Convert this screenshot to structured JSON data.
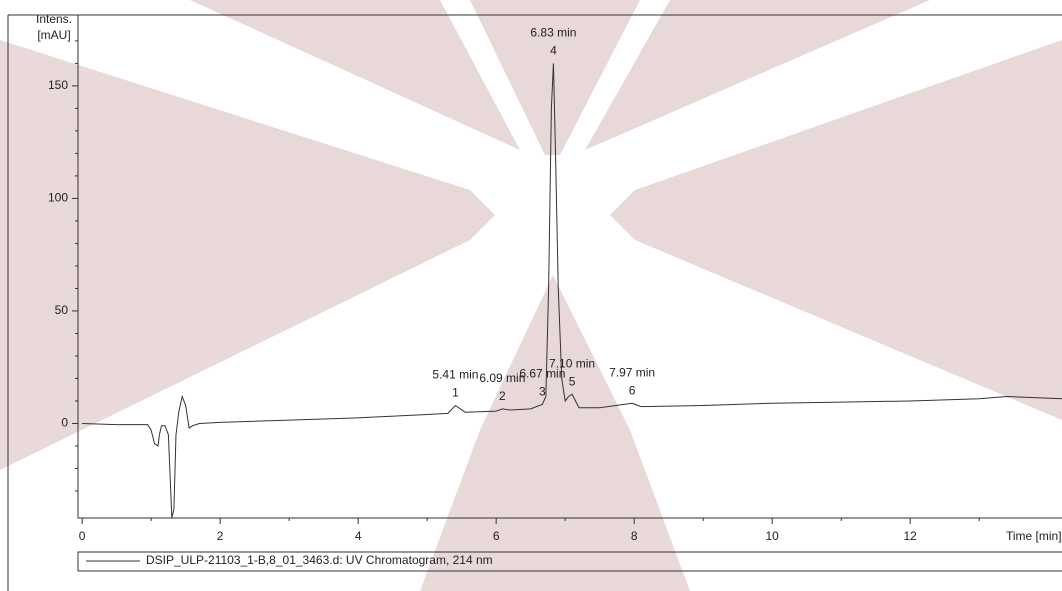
{
  "chart_data": {
    "type": "line",
    "y_label": [
      "Intens.",
      "[mAU]"
    ],
    "x_label": "Time [min]",
    "xlim": [
      -0.06,
      14.2
    ],
    "ylim": [
      -42,
      181.5
    ],
    "xticks": [
      0,
      2,
      4,
      6,
      8,
      10,
      12
    ],
    "yticks": [
      0,
      50,
      100,
      150
    ],
    "xminorticks": [
      1,
      3,
      5,
      7,
      9,
      11,
      13
    ],
    "yminorticks": [
      -30,
      -20,
      -10,
      10,
      20,
      30,
      40,
      60,
      70,
      80,
      90,
      110,
      120,
      130,
      140,
      160,
      170
    ],
    "series": [
      {
        "name": "DSIP_ULP-21103_1-B,8_01_3463.d: UV Chromatogram, 214 nm",
        "color": "#333333",
        "x": [
          0,
          0.5,
          0.95,
          1.0,
          1.05,
          1.1,
          1.12,
          1.15,
          1.2,
          1.25,
          1.3,
          1.33,
          1.36,
          1.4,
          1.45,
          1.5,
          1.55,
          1.6,
          1.7,
          2,
          3,
          4,
          5,
          5.3,
          5.41,
          5.55,
          6,
          6.09,
          6.2,
          6.5,
          6.67,
          6.72,
          6.76,
          6.8,
          6.83,
          6.86,
          6.9,
          6.95,
          7.0,
          7.05,
          7.1,
          7.2,
          7.5,
          7.97,
          8.1,
          9,
          10,
          11,
          12,
          13,
          13.4,
          14.2
        ],
        "values": [
          0,
          -0.5,
          -0.5,
          -3,
          -9,
          -10,
          -5,
          -1,
          -1,
          -5,
          -42,
          -38,
          -5,
          5,
          12,
          8,
          -2,
          -1,
          0,
          0.5,
          1.5,
          2.5,
          4,
          4.5,
          8,
          5,
          5.5,
          6.5,
          6,
          6.5,
          8.5,
          12,
          60,
          140,
          160,
          120,
          60,
          20,
          10,
          12,
          13,
          7,
          7,
          9,
          7.5,
          8,
          9,
          9.5,
          10,
          11,
          12,
          11
        ]
      }
    ],
    "peaks": [
      {
        "label": "5.41 min",
        "number": "1",
        "x": 5.41,
        "y": 8
      },
      {
        "label": "6.09 min",
        "number": "2",
        "x": 6.09,
        "y": 6.5
      },
      {
        "label": "6.67 min",
        "number": "3",
        "x": 6.67,
        "y": 8.5
      },
      {
        "label": "6.83 min",
        "number": "4",
        "x": 6.83,
        "y": 160
      },
      {
        "label": "7.10 min",
        "number": "5",
        "x": 7.1,
        "y": 13
      },
      {
        "label": "7.97 min",
        "number": "6",
        "x": 7.97,
        "y": 9
      }
    ]
  }
}
